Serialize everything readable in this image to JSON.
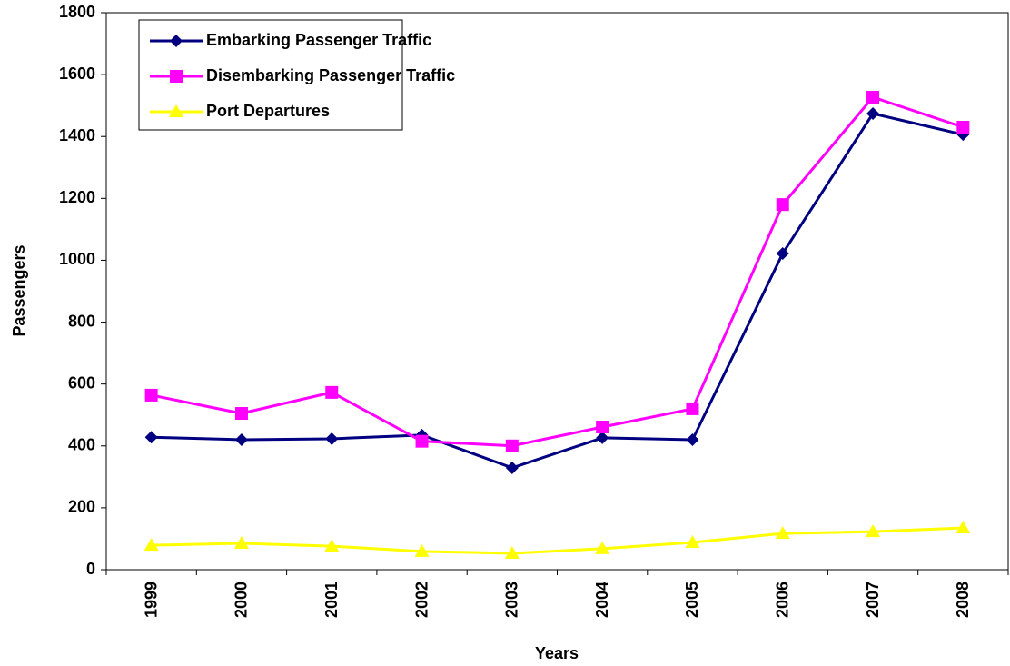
{
  "chart_data": {
    "type": "line",
    "categories": [
      "1999",
      "2000",
      "2001",
      "2002",
      "2003",
      "2004",
      "2005",
      "2006",
      "2007",
      "2008"
    ],
    "series": [
      {
        "name": "Embarking Passenger Traffic",
        "color": "#000080",
        "marker": "diamond",
        "values": [
          428,
          420,
          423,
          435,
          329,
          426,
          420,
          1022,
          1474,
          1406
        ]
      },
      {
        "name": "Disembarking Passenger Traffic",
        "color": "#ff00ff",
        "marker": "square",
        "values": [
          564,
          505,
          573,
          415,
          400,
          461,
          520,
          1180,
          1527,
          1430
        ]
      },
      {
        "name": "Port Departures",
        "color": "#ffff00",
        "marker": "triangle",
        "values": [
          79,
          85,
          76,
          59,
          53,
          68,
          88,
          117,
          123,
          135
        ]
      }
    ],
    "ylim": [
      0,
      1800
    ],
    "yticks": [
      0,
      200,
      400,
      600,
      800,
      1000,
      1200,
      1400,
      1600,
      1800
    ],
    "y_label": "Passengers",
    "x_label": "Years",
    "grid": false,
    "legend": "top-left"
  }
}
